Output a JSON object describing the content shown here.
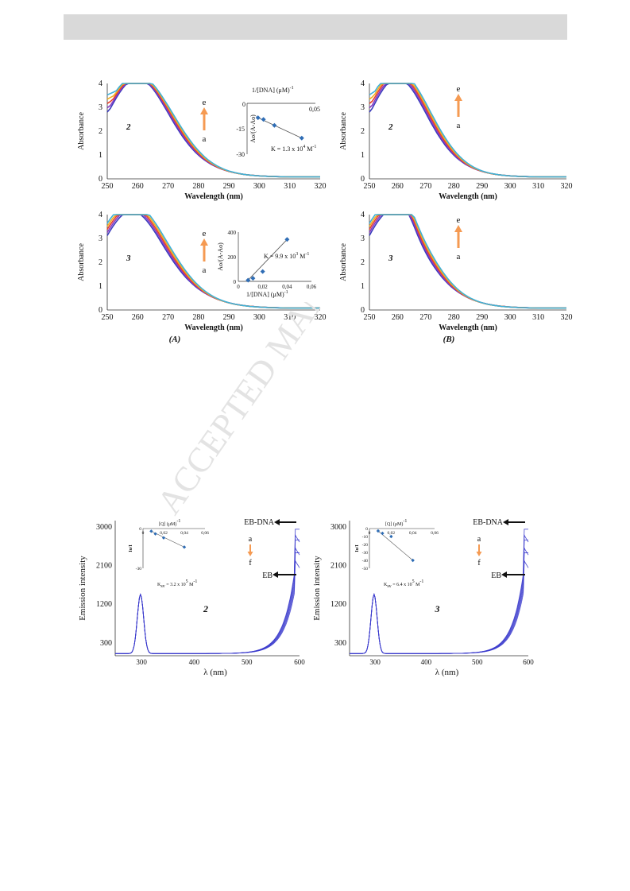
{
  "watermark": "ACCEPTED MANUSCRIPT",
  "colors": {
    "curves": [
      "#3b3bbd",
      "#8a3ac2",
      "#e8402a",
      "#f2b01e",
      "#3fb0d8"
    ],
    "arrow": "#f59a52",
    "inset_marker": "#2f6db5",
    "emission": "#3a3acc",
    "watermark": "#e3e3e3"
  },
  "absorbance_panels": [
    {
      "id": "A2",
      "compound": "2",
      "ylabel": "Absorbance",
      "xlabel": "Wavelength (nm)",
      "xticks": [
        "250",
        "260",
        "270",
        "280",
        "290",
        "300",
        "310",
        "320"
      ],
      "yticks": [
        "0",
        "1",
        "2",
        "3",
        "4"
      ],
      "arrow_top": "e",
      "arrow_bottom": "a",
      "inset": {
        "top_label": "1/[DNA] (μM)",
        "top_label_sup": "-1",
        "ylabel": "Ao/(A-Ao)",
        "xticks": [
          "0",
          "0,05"
        ],
        "yticks": [
          "0",
          "-15",
          "-30"
        ],
        "k_text": "K = 1.3 x 10",
        "k_exp": "4",
        "k_unit": " M",
        "k_unit_sup": "-1",
        "points": [
          [
            0.008,
            -8.5
          ],
          [
            0.012,
            -9.5
          ],
          [
            0.02,
            -13
          ],
          [
            0.04,
            -20.5
          ]
        ],
        "xlim": [
          0,
          0.05
        ],
        "ylim": [
          -30,
          0
        ]
      }
    },
    {
      "id": "B2",
      "compound": "2",
      "ylabel": "Absorbance",
      "xlabel": "Wavelength (nm)",
      "xticks": [
        "250",
        "260",
        "270",
        "280",
        "290",
        "300",
        "310",
        "320"
      ],
      "yticks": [
        "0",
        "1",
        "2",
        "3",
        "4"
      ],
      "arrow_top": "e",
      "arrow_bottom": "a"
    },
    {
      "id": "A3",
      "compound": "3",
      "ylabel": "Absorbance",
      "xlabel": "Wavelength (nm)",
      "xticks": [
        "250",
        "260",
        "270",
        "280",
        "290",
        "300",
        "310",
        "320"
      ],
      "yticks": [
        "0",
        "1",
        "2",
        "3",
        "4"
      ],
      "arrow_top": "e",
      "arrow_bottom": "a",
      "caption": "(A)",
      "inset": {
        "bottom_label": "1/[DNA] (μM)",
        "bottom_label_sup": "-1",
        "ylabel": "Ao/(A-Ao)",
        "xticks": [
          "0",
          "0,02",
          "0,04",
          "0,06"
        ],
        "yticks": [
          "0",
          "200",
          "400"
        ],
        "k_text": "K = 9.9 x 10",
        "k_exp": "3",
        "k_unit": " M",
        "k_unit_sup": "-1",
        "points": [
          [
            0.008,
            10
          ],
          [
            0.012,
            25
          ],
          [
            0.02,
            80
          ],
          [
            0.04,
            340
          ]
        ],
        "xlim": [
          0,
          0.06
        ],
        "ylim": [
          0,
          400
        ]
      }
    },
    {
      "id": "B3",
      "compound": "3",
      "ylabel": "Absorbance",
      "xlabel": "Wavelength (nm)",
      "xticks": [
        "250",
        "260",
        "270",
        "280",
        "290",
        "300",
        "310",
        "320"
      ],
      "yticks": [
        "0",
        "1",
        "2",
        "3",
        "4"
      ],
      "arrow_top": "e",
      "arrow_bottom": "a",
      "caption": "(B)"
    }
  ],
  "emission_panels": [
    {
      "id": "E2",
      "compound": "2",
      "ylabel": "Emission intensity",
      "xlabel": "λ (nm)",
      "xticks": [
        "300",
        "400",
        "500",
        "600"
      ],
      "yticks": [
        "300",
        "1200",
        "2100",
        "3000"
      ],
      "label_top": "EB-DNA",
      "label_mid": "EB",
      "arrow_top": "a",
      "arrow_bottom": "f",
      "inset": {
        "top_label": "[Q] (μM)",
        "top_label_sup": "-1",
        "ylabel": "Io/I",
        "xticks": [
          "0",
          "0,02",
          "0,04",
          "0,06"
        ],
        "yticks": [
          "0",
          "-30"
        ],
        "k_text": "K",
        "k_sub": "sv",
        "k_rest": " = 3.2  x 10",
        "k_exp": "5",
        "k_unit": " M",
        "k_unit_sup": "-1",
        "points": [
          [
            0.008,
            -2
          ],
          [
            0.012,
            -4
          ],
          [
            0.02,
            -7
          ],
          [
            0.04,
            -14
          ]
        ],
        "xlim": [
          0,
          0.06
        ],
        "ylim": [
          -30,
          0
        ]
      }
    },
    {
      "id": "E3",
      "compound": "3",
      "ylabel": "Emission intensity",
      "xlabel": "λ (nm)",
      "xticks": [
        "300",
        "400",
        "500",
        "600"
      ],
      "yticks": [
        "300",
        "1200",
        "2100",
        "3000"
      ],
      "label_top": "EB-DNA",
      "label_mid": "EB",
      "arrow_top": "a",
      "arrow_bottom": "f",
      "inset": {
        "top_label": "[Q] (μM)",
        "top_label_sup": "-1",
        "ylabel": "Io/I",
        "xticks": [
          "0",
          "0,02",
          "0,04",
          "0,06"
        ],
        "yticks": [
          "0",
          "-10",
          "-20",
          "-30",
          "-40",
          "-50"
        ],
        "k_text": "K",
        "k_sub": "sv",
        "k_rest": " = 6.4  x 10",
        "k_exp": "5",
        "k_unit": " M",
        "k_unit_sup": "-1",
        "points": [
          [
            0.008,
            -3
          ],
          [
            0.012,
            -6
          ],
          [
            0.02,
            -10
          ],
          [
            0.04,
            -40
          ]
        ],
        "xlim": [
          0,
          0.06
        ],
        "ylim": [
          -50,
          0
        ]
      }
    }
  ]
}
